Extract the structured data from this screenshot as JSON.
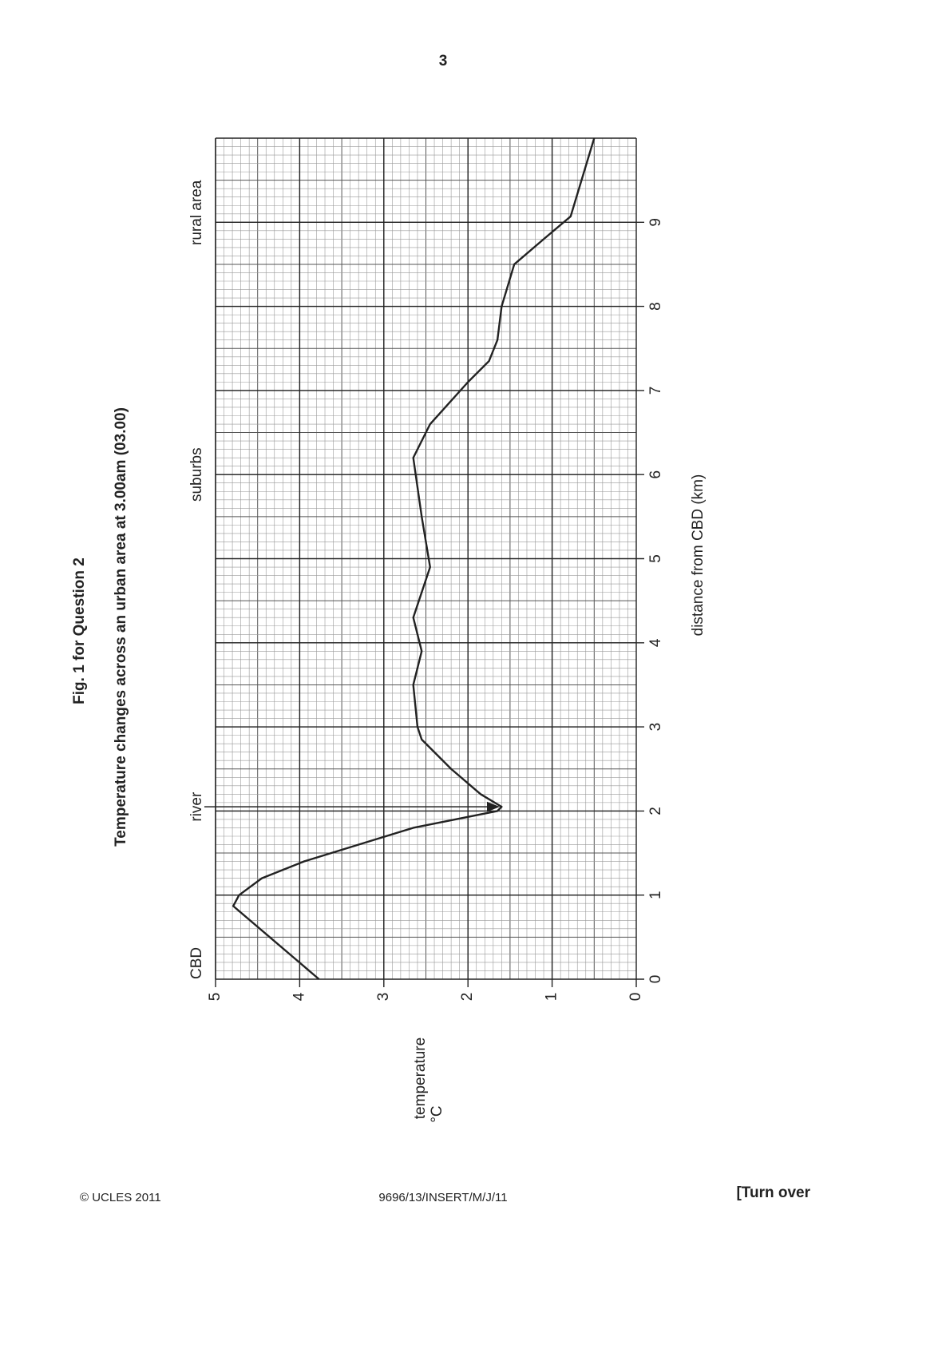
{
  "page_number": "3",
  "footer": {
    "left": "© UCLES 2011",
    "center": "9696/13/INSERT/M/J/11",
    "right": "[Turn over"
  },
  "chart_data": {
    "type": "line",
    "title": "Fig. 1 for Question 2",
    "subtitle": "Temperature changes across an urban area at 3.00am (03.00)",
    "x_label": "distance from CBD (km)",
    "y_label": [
      "temperature",
      "°C"
    ],
    "x": [
      0,
      0.87,
      1.0,
      1.2,
      1.4,
      1.6,
      1.8,
      2.0,
      2.05,
      2.2,
      2.5,
      2.85,
      3.0,
      3.5,
      3.9,
      4.3,
      4.9,
      5.5,
      6.2,
      6.6,
      7.1,
      7.35,
      7.6,
      8.0,
      8.5,
      8.8,
      9.07,
      10
    ],
    "series": [
      {
        "name": "temperature",
        "color": "#222222",
        "values": [
          3.77,
          4.79,
          4.72,
          4.45,
          3.95,
          3.3,
          2.65,
          1.65,
          1.6,
          1.85,
          2.2,
          2.55,
          2.6,
          2.65,
          2.55,
          2.65,
          2.45,
          2.55,
          2.65,
          2.45,
          2.0,
          1.75,
          1.65,
          1.6,
          1.45,
          1.1,
          0.78,
          0.5
        ]
      }
    ],
    "xlim": [
      0,
      10
    ],
    "xticks": [
      0,
      1,
      2,
      3,
      4,
      5,
      6,
      7,
      8,
      9
    ],
    "ylim": [
      0,
      5
    ],
    "yticks": [
      0,
      1,
      2,
      3,
      4,
      5
    ],
    "grid": true,
    "annotations": [
      {
        "label": "CBD",
        "x": 0
      },
      {
        "label": "river",
        "x": 2.05,
        "arrow_to": 1.6
      },
      {
        "label": "suburbs",
        "x": 6
      },
      {
        "label": "rural area",
        "x": 9.5
      }
    ]
  }
}
